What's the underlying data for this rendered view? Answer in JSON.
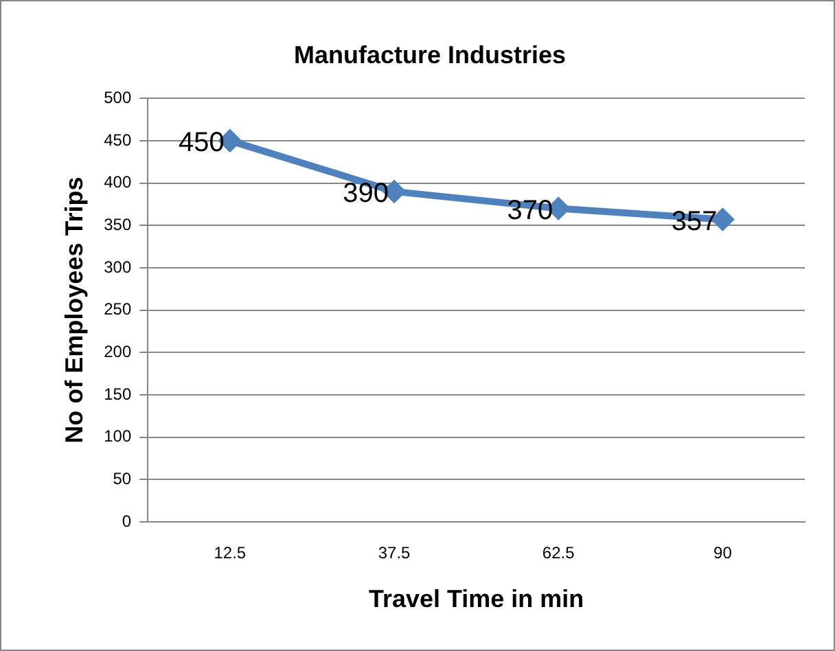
{
  "chart_data": {
    "type": "line",
    "title": "Manufacture Industries",
    "xlabel": "Travel Time in min",
    "ylabel": "No of Employees Trips",
    "categories": [
      "12.5",
      "37.5",
      "62.5",
      "90"
    ],
    "series": [
      {
        "color": "#4f81bd",
        "values": [
          450,
          390,
          370,
          357
        ]
      }
    ],
    "ylim": [
      0,
      500
    ],
    "yticks": [
      0,
      50,
      100,
      150,
      200,
      250,
      300,
      350,
      400,
      450,
      500
    ],
    "grid": "y",
    "legend": false,
    "marker": "diamond",
    "line_style": "solid",
    "data_labels": true
  }
}
